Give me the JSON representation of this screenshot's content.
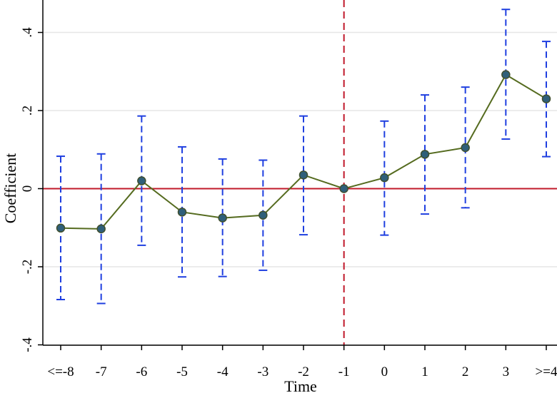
{
  "chart_data": {
    "type": "line",
    "title": "",
    "xlabel": "Time",
    "ylabel": "Coefficient",
    "categories": [
      "<=-8",
      "-7",
      "-6",
      "-5",
      "-4",
      "-3",
      "-2",
      "-1",
      "0",
      "1",
      "2",
      "3",
      ">=4"
    ],
    "y_ticks": [
      ".4",
      ".2",
      "0",
      "-.2",
      "-.4"
    ],
    "y_tick_values": [
      0.4,
      0.2,
      0,
      -0.2,
      -0.4
    ],
    "ylim": [
      -0.405,
      0.48
    ],
    "grid": true,
    "reference_line_y": 0,
    "reference_line_x": "-1",
    "series": [
      {
        "values": [
          -0.101,
          -0.103,
          0.02,
          -0.06,
          -0.075,
          -0.068,
          0.035,
          0.0,
          0.028,
          0.088,
          0.105,
          0.292,
          0.23
        ],
        "ci_lower": [
          -0.284,
          -0.294,
          -0.145,
          -0.226,
          -0.225,
          -0.209,
          -0.118,
          0.0,
          -0.119,
          -0.065,
          -0.049,
          0.127,
          0.082
        ],
        "ci_upper": [
          0.083,
          0.089,
          0.186,
          0.107,
          0.076,
          0.073,
          0.186,
          0.0,
          0.173,
          0.24,
          0.26,
          0.459,
          0.377
        ]
      }
    ],
    "colors": {
      "line": "#556b1f",
      "marker_fill": "#2f5f7a",
      "marker_stroke": "#3f4f2f",
      "ci": "#1f3fe0",
      "zero_line": "#c01a2a",
      "vline": "#c0182a",
      "grid": "#e6e6e6",
      "axis": "#000000"
    }
  }
}
